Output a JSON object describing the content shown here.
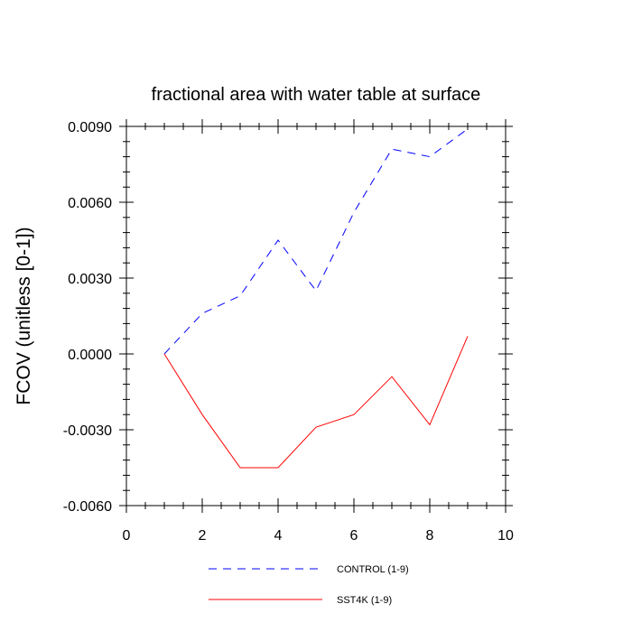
{
  "chart_data": {
    "type": "line",
    "title": "fractional area with water table at surface",
    "xlabel": "",
    "ylabel": "FCOV  (unitless [0-1])",
    "xlim": [
      0,
      10
    ],
    "ylim": [
      -0.006,
      0.009
    ],
    "xticks": [
      0,
      2,
      4,
      6,
      8,
      10
    ],
    "xtick_labels": [
      "0",
      "2",
      "4",
      "6",
      "8",
      "10"
    ],
    "yticks": [
      -0.006,
      -0.003,
      0.0,
      0.003,
      0.006,
      0.009
    ],
    "ytick_labels": [
      "-0.0060",
      "-0.0030",
      "0.0000",
      "0.0030",
      "0.0060",
      "0.0090"
    ],
    "grid": false,
    "legend_position": "bottom",
    "series": [
      {
        "name": "CONTROL (1-9)",
        "color": "#0000ff",
        "style": "dashed",
        "x": [
          1,
          2,
          3,
          4,
          5,
          6,
          7,
          8,
          9
        ],
        "values": [
          0.0,
          0.0016,
          0.0023,
          0.0045,
          0.0025,
          0.0056,
          0.0081,
          0.0078,
          0.0089
        ]
      },
      {
        "name": "SST4K (1-9)",
        "color": "#ff0000",
        "style": "solid",
        "x": [
          1,
          2,
          3,
          4,
          5,
          6,
          7,
          8,
          9
        ],
        "values": [
          0.0,
          -0.0024,
          -0.0045,
          -0.0045,
          -0.0029,
          -0.0024,
          -0.0009,
          -0.0028,
          0.0007
        ]
      }
    ]
  }
}
